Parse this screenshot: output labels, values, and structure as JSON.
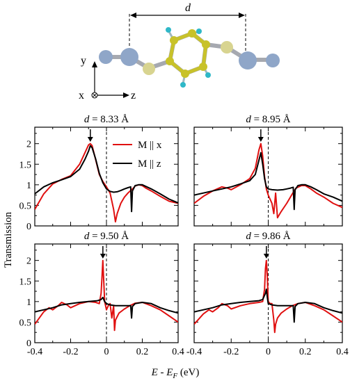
{
  "figure": {
    "ylabel": "Transmission",
    "xlabel_parts": [
      "E - E",
      "F",
      " (eV)"
    ],
    "molecule": {
      "distance_label": "d",
      "axis_labels": {
        "y": "y",
        "x": "x",
        "z": "z"
      },
      "colors": {
        "gold": "#c8c22a",
        "sulfur": "#d8d490",
        "hydrogen": "#2fb8c8",
        "gold_atom": "#8fa6c8",
        "bond": "#9aa0aa"
      }
    },
    "colors": {
      "mx": "#e01010",
      "mz": "#000000"
    }
  },
  "chart_data": [
    {
      "type": "line",
      "title_var": "d",
      "title_val": " = 8.33 Å",
      "xlim": [
        -0.4,
        0.4
      ],
      "ylim": [
        0,
        2.4
      ],
      "xticks": [],
      "yticks": [
        "0",
        "0.5",
        "1",
        "1.5",
        "2"
      ],
      "arrow_x": -0.09,
      "legend": [
        "M || x",
        "M || z"
      ],
      "series": [
        {
          "name": "M || x",
          "x": [
            -0.4,
            -0.35,
            -0.3,
            -0.25,
            -0.2,
            -0.15,
            -0.12,
            -0.1,
            -0.09,
            -0.08,
            -0.06,
            -0.04,
            -0.02,
            0.0,
            0.02,
            0.04,
            0.05,
            0.06,
            0.08,
            0.1,
            0.12,
            0.14,
            0.15,
            0.16,
            0.18,
            0.2,
            0.22,
            0.25,
            0.3,
            0.35,
            0.4
          ],
          "y": [
            0.4,
            0.78,
            1.02,
            1.13,
            1.22,
            1.5,
            1.78,
            1.97,
            2.0,
            1.95,
            1.6,
            1.25,
            1.08,
            0.95,
            0.8,
            0.4,
            0.1,
            0.3,
            0.55,
            0.7,
            0.8,
            0.88,
            0.92,
            0.97,
            1.0,
            0.98,
            0.92,
            0.85,
            0.72,
            0.6,
            0.55
          ]
        },
        {
          "name": "M || z",
          "x": [
            -0.4,
            -0.35,
            -0.3,
            -0.25,
            -0.2,
            -0.15,
            -0.12,
            -0.1,
            -0.09,
            -0.08,
            -0.06,
            -0.04,
            -0.02,
            0.0,
            0.02,
            0.04,
            0.06,
            0.08,
            0.1,
            0.12,
            0.135,
            0.14,
            0.145,
            0.16,
            0.18,
            0.2,
            0.22,
            0.25,
            0.3,
            0.35,
            0.4
          ],
          "y": [
            0.78,
            0.95,
            1.05,
            1.12,
            1.2,
            1.38,
            1.62,
            1.82,
            1.95,
            1.9,
            1.62,
            1.28,
            1.05,
            0.9,
            0.84,
            0.82,
            0.83,
            0.86,
            0.9,
            0.93,
            0.95,
            0.35,
            0.85,
            0.98,
            1.0,
            1.0,
            0.96,
            0.9,
            0.78,
            0.65,
            0.56
          ]
        }
      ]
    },
    {
      "type": "line",
      "title_var": "d",
      "title_val": " = 8.95 Å",
      "xlim": [
        -0.4,
        0.4
      ],
      "ylim": [
        0,
        2.4
      ],
      "xticks": [],
      "yticks": [],
      "arrow_x": -0.04,
      "legend": [],
      "series": [
        {
          "name": "M || x",
          "x": [
            -0.4,
            -0.35,
            -0.3,
            -0.25,
            -0.22,
            -0.2,
            -0.15,
            -0.1,
            -0.07,
            -0.05,
            -0.04,
            -0.03,
            -0.02,
            -0.01,
            0.0,
            0.02,
            0.03,
            0.04,
            0.05,
            0.07,
            0.1,
            0.13,
            0.15,
            0.18,
            0.2,
            0.23,
            0.26,
            0.3,
            0.35,
            0.4
          ],
          "y": [
            0.55,
            0.72,
            0.85,
            0.95,
            0.92,
            0.88,
            1.0,
            1.15,
            1.4,
            1.85,
            2.0,
            1.7,
            1.2,
            0.9,
            0.75,
            0.55,
            0.3,
            0.8,
            0.2,
            0.35,
            0.55,
            0.78,
            0.92,
            0.98,
            0.98,
            0.9,
            0.8,
            0.7,
            0.55,
            0.45
          ]
        },
        {
          "name": "M || z",
          "x": [
            -0.4,
            -0.35,
            -0.3,
            -0.25,
            -0.2,
            -0.15,
            -0.1,
            -0.07,
            -0.05,
            -0.04,
            -0.03,
            -0.02,
            -0.01,
            0.0,
            0.02,
            0.05,
            0.08,
            0.1,
            0.12,
            0.135,
            0.14,
            0.145,
            0.16,
            0.18,
            0.2,
            0.23,
            0.26,
            0.3,
            0.35,
            0.4
          ],
          "y": [
            0.75,
            0.8,
            0.85,
            0.9,
            0.95,
            1.02,
            1.1,
            1.25,
            1.6,
            1.78,
            1.5,
            1.15,
            0.95,
            0.9,
            0.88,
            0.87,
            0.88,
            0.9,
            0.92,
            0.94,
            0.4,
            0.88,
            0.98,
            1.0,
            1.0,
            0.95,
            0.88,
            0.78,
            0.7,
            0.6
          ]
        }
      ]
    },
    {
      "type": "line",
      "title_var": "d",
      "title_val": " = 9.50 Å",
      "xlim": [
        -0.4,
        0.4
      ],
      "ylim": [
        0,
        2.4
      ],
      "xticks": [
        "-0.4",
        "-0.2",
        "0",
        "0.2",
        "0.4"
      ],
      "yticks": [
        "0",
        "0.5",
        "1",
        "1.5",
        "2"
      ],
      "arrow_x": -0.02,
      "legend": [],
      "series": [
        {
          "name": "M || x",
          "x": [
            -0.4,
            -0.35,
            -0.32,
            -0.3,
            -0.27,
            -0.25,
            -0.22,
            -0.2,
            -0.15,
            -0.1,
            -0.06,
            -0.04,
            -0.03,
            -0.025,
            -0.02,
            -0.015,
            -0.01,
            0.0,
            0.01,
            0.02,
            0.03,
            0.04,
            0.045,
            0.05,
            0.07,
            0.1,
            0.13,
            0.16,
            0.2,
            0.25,
            0.3,
            0.35,
            0.4
          ],
          "y": [
            0.45,
            0.75,
            0.85,
            0.8,
            0.9,
            0.98,
            0.92,
            0.85,
            0.95,
            1.0,
            0.98,
            0.95,
            1.2,
            1.6,
            2.0,
            1.5,
            1.0,
            0.8,
            0.9,
            0.95,
            0.6,
            0.9,
            0.3,
            0.55,
            0.72,
            0.82,
            0.9,
            0.96,
            0.98,
            0.9,
            0.8,
            0.65,
            0.5
          ]
        },
        {
          "name": "M || z",
          "x": [
            -0.4,
            -0.35,
            -0.3,
            -0.25,
            -0.2,
            -0.15,
            -0.1,
            -0.05,
            -0.03,
            -0.02,
            -0.01,
            0.0,
            0.02,
            0.05,
            0.08,
            0.1,
            0.12,
            0.135,
            0.14,
            0.145,
            0.16,
            0.2,
            0.25,
            0.3,
            0.35,
            0.4
          ],
          "y": [
            0.75,
            0.8,
            0.85,
            0.92,
            0.95,
            0.98,
            1.0,
            1.02,
            1.05,
            1.1,
            1.0,
            0.95,
            0.92,
            0.9,
            0.9,
            0.9,
            0.9,
            0.9,
            0.6,
            0.88,
            0.95,
            0.98,
            0.95,
            0.85,
            0.78,
            0.72
          ]
        }
      ]
    },
    {
      "type": "line",
      "title_var": "d",
      "title_val": " = 9.86 Å",
      "xlim": [
        -0.4,
        0.4
      ],
      "ylim": [
        0,
        2.4
      ],
      "xticks": [
        "-0.4",
        "-0.2",
        "0",
        "0.2",
        "0.4"
      ],
      "yticks": [],
      "arrow_x": -0.01,
      "legend": [],
      "series": [
        {
          "name": "M || x",
          "x": [
            -0.4,
            -0.35,
            -0.32,
            -0.3,
            -0.27,
            -0.25,
            -0.22,
            -0.2,
            -0.15,
            -0.1,
            -0.05,
            -0.03,
            -0.02,
            -0.015,
            -0.01,
            -0.005,
            0.0,
            0.01,
            0.02,
            0.03,
            0.035,
            0.04,
            0.05,
            0.07,
            0.1,
            0.13,
            0.16,
            0.2,
            0.25,
            0.3,
            0.35,
            0.4
          ],
          "y": [
            0.45,
            0.7,
            0.8,
            0.75,
            0.85,
            0.95,
            0.9,
            0.82,
            0.9,
            0.95,
            0.98,
            1.0,
            1.3,
            1.8,
            2.0,
            1.6,
            1.0,
            0.95,
            0.95,
            0.55,
            0.25,
            0.45,
            0.6,
            0.72,
            0.82,
            0.9,
            0.95,
            0.98,
            0.9,
            0.8,
            0.65,
            0.5
          ]
        },
        {
          "name": "M || z",
          "x": [
            -0.4,
            -0.35,
            -0.3,
            -0.25,
            -0.2,
            -0.15,
            -0.1,
            -0.05,
            -0.03,
            -0.015,
            -0.01,
            -0.005,
            0.0,
            0.02,
            0.05,
            0.08,
            0.1,
            0.12,
            0.135,
            0.14,
            0.145,
            0.16,
            0.2,
            0.25,
            0.3,
            0.35,
            0.4
          ],
          "y": [
            0.75,
            0.8,
            0.85,
            0.92,
            0.95,
            0.98,
            1.0,
            1.02,
            1.05,
            1.2,
            1.3,
            1.1,
            0.95,
            0.92,
            0.9,
            0.9,
            0.9,
            0.9,
            0.9,
            0.5,
            0.88,
            0.95,
            0.98,
            0.95,
            0.85,
            0.78,
            0.72
          ]
        }
      ]
    }
  ]
}
